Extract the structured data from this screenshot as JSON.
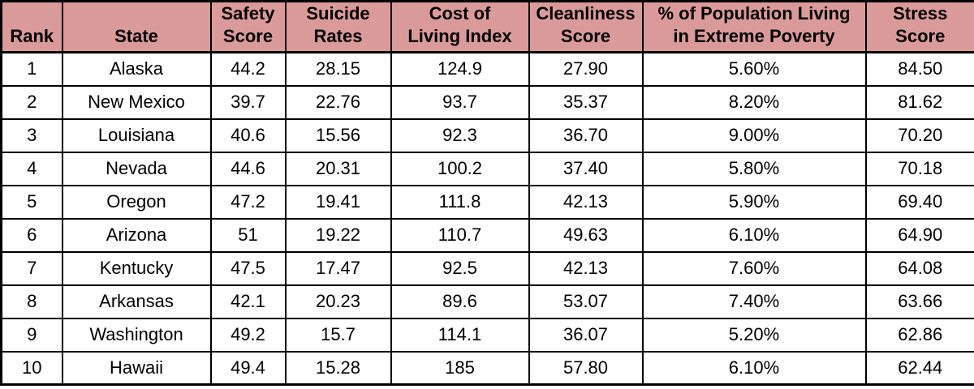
{
  "chart_data": {
    "type": "table",
    "title": "",
    "columns": [
      {
        "key": "rank",
        "label": "Rank"
      },
      {
        "key": "state",
        "label": "State"
      },
      {
        "key": "safety_score",
        "label": "Safety\nScore"
      },
      {
        "key": "suicide_rates",
        "label": "Suicide\nRates"
      },
      {
        "key": "cost_of_living_index",
        "label": "Cost of\nLiving Index"
      },
      {
        "key": "cleanliness_score",
        "label": "Cleanliness\nScore"
      },
      {
        "key": "pct_population_extreme_poverty",
        "label": "% of Population Living\nin Extreme Poverty"
      },
      {
        "key": "stress_score",
        "label": "Stress\nScore"
      }
    ],
    "rows": [
      [
        "1",
        "Alaska",
        "44.2",
        "28.15",
        "124.9",
        "27.90",
        "5.60%",
        "84.50"
      ],
      [
        "2",
        "New Mexico",
        "39.7",
        "22.76",
        "93.7",
        "35.37",
        "8.20%",
        "81.62"
      ],
      [
        "3",
        "Louisiana",
        "40.6",
        "15.56",
        "92.3",
        "36.70",
        "9.00%",
        "70.20"
      ],
      [
        "4",
        "Nevada",
        "44.6",
        "20.31",
        "100.2",
        "37.40",
        "5.80%",
        "70.18"
      ],
      [
        "5",
        "Oregon",
        "47.2",
        "19.41",
        "111.8",
        "42.13",
        "5.90%",
        "69.40"
      ],
      [
        "6",
        "Arizona",
        "51",
        "19.22",
        "110.7",
        "49.63",
        "6.10%",
        "64.90"
      ],
      [
        "7",
        "Kentucky",
        "47.5",
        "17.47",
        "92.5",
        "42.13",
        "7.60%",
        "64.08"
      ],
      [
        "8",
        "Arkansas",
        "42.1",
        "20.23",
        "89.6",
        "53.07",
        "7.40%",
        "63.66"
      ],
      [
        "9",
        "Washington",
        "49.2",
        "15.7",
        "114.1",
        "36.07",
        "5.20%",
        "62.86"
      ],
      [
        "10",
        "Hawaii",
        "49.4",
        "15.28",
        "185",
        "57.80",
        "6.10%",
        "62.44"
      ]
    ],
    "layout": {
      "header_rows": 1,
      "grid": true,
      "header_align": "center-bottom",
      "cell_align": "center"
    }
  },
  "colors": {
    "header_bg": "#db9a9a",
    "border": "#000000",
    "cell_bg": "#ffffff",
    "text": "#000000"
  }
}
